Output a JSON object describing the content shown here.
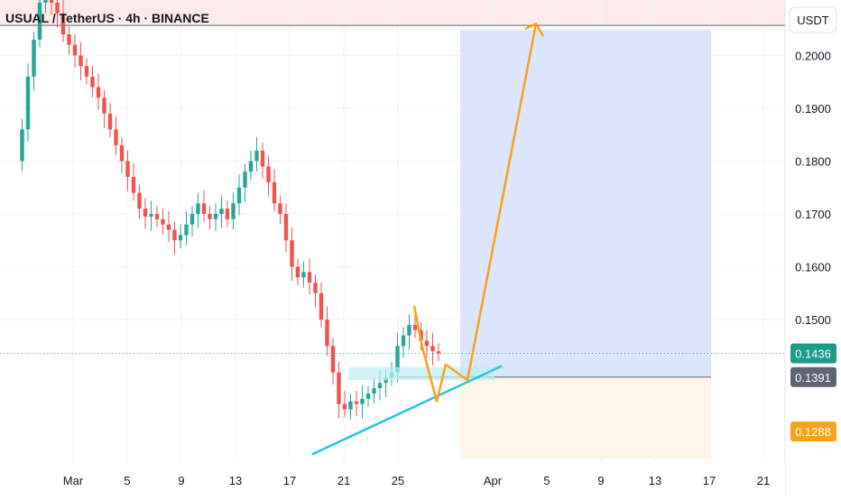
{
  "header": {
    "title": "USUAL / TetherUS · 4h · BINANCE"
  },
  "chart_data": {
    "type": "line",
    "y_axis": {
      "unit": "USDT",
      "ticks": [
        "0.2000",
        "0.1900",
        "0.1800",
        "0.1700",
        "0.1600",
        "0.1500"
      ],
      "tick_values": [
        0.2,
        0.19,
        0.18,
        0.17,
        0.16,
        0.15
      ],
      "range": [
        0.123,
        0.2105
      ]
    },
    "x_axis": {
      "ticks": [
        "Mar",
        "5",
        "9",
        "13",
        "17",
        "21",
        "25",
        "Apr",
        "5",
        "9",
        "13",
        "17",
        "21"
      ],
      "tick_dates": [
        "2025-03-01",
        "2025-03-05",
        "2025-03-09",
        "2025-03-13",
        "2025-03-17",
        "2025-03-21",
        "2025-03-25",
        "2025-04-01",
        "2025-04-05",
        "2025-04-09",
        "2025-04-13",
        "2025-04-17",
        "2025-04-21"
      ]
    },
    "price_labels": {
      "current": {
        "text": "0.1436",
        "value": 0.1436,
        "color": "#1b9c86"
      },
      "entry": {
        "text": "0.1391",
        "value": 0.1391,
        "color": "#5d6371"
      },
      "stop": {
        "text": "0.1288",
        "value": 0.1288,
        "color": "#f7a21b"
      }
    },
    "target_level": 0.2057,
    "colors": {
      "up": "#26a69a",
      "down": "#ef5350",
      "projection": "#f7a21b",
      "trendline": "#26c6da",
      "profit_zone": "#dbe5fb",
      "loss_zone": "#fff6e9",
      "top_zone": "#fdebeb"
    },
    "series": [
      {
        "values": [
          0.18,
          0.186,
          0.196,
          0.203,
          0.21,
          0.212,
          0.21,
          0.208,
          0.204,
          0.202,
          0.2,
          0.198,
          0.196,
          0.194,
          0.192,
          0.189,
          0.186,
          0.183,
          0.18,
          0.177,
          0.174,
          0.171,
          0.1695,
          0.17,
          0.169,
          0.168,
          0.167,
          0.165,
          0.166,
          0.168,
          0.17,
          0.172,
          0.17,
          0.169,
          0.17,
          0.171,
          0.169,
          0.172,
          0.175,
          0.178,
          0.18,
          0.182,
          0.179,
          0.176,
          0.172,
          0.17,
          0.165,
          0.16,
          0.158,
          0.159,
          0.157,
          0.155,
          0.15,
          0.145,
          0.14,
          0.134,
          0.133,
          0.1345,
          0.134,
          0.135,
          0.136,
          0.137,
          0.138,
          0.139,
          0.14,
          0.145,
          0.147,
          0.149,
          0.148,
          0.146,
          0.145,
          0.144,
          0.1436
        ]
      }
    ]
  }
}
